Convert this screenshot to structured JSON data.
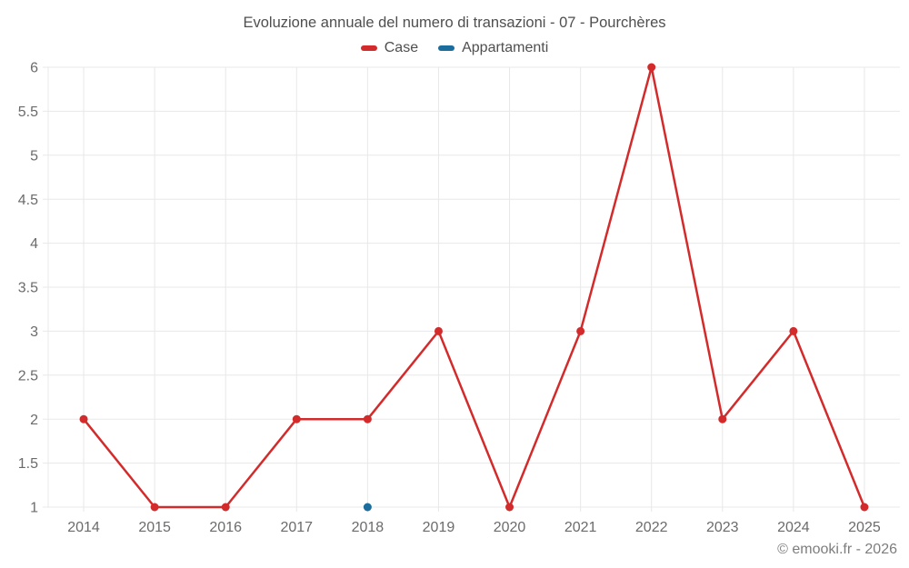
{
  "title": "Evoluzione annuale del numero di transazioni - 07 - Pourchères",
  "footer": "© emooki.fr - 2026",
  "colors": {
    "case_red": "#d32b2b",
    "appartamenti_blue": "#1a6d9c",
    "grid": "#e8e8e8",
    "axis_text": "#6b6b6b",
    "title_text": "#4f4f4f"
  },
  "chart_data": {
    "type": "line",
    "title": "Evoluzione annuale del numero di transazioni - 07 - Pourchères",
    "x": [
      "2014",
      "2015",
      "2016",
      "2017",
      "2018",
      "2019",
      "2020",
      "2021",
      "2022",
      "2023",
      "2024",
      "2025"
    ],
    "series": [
      {
        "name": "Case",
        "color": "#d32b2b",
        "values": [
          2,
          1,
          1,
          2,
          2,
          3,
          1,
          3,
          6,
          2,
          3,
          1
        ]
      },
      {
        "name": "Appartamenti",
        "color": "#1a6d9c",
        "values": [
          null,
          null,
          null,
          null,
          1,
          null,
          null,
          null,
          null,
          null,
          null,
          null
        ]
      }
    ],
    "xlabel": "",
    "ylabel": "",
    "ylim": [
      1,
      6
    ],
    "ytick_step": 0.5,
    "grid": true,
    "legend_position": "top"
  }
}
